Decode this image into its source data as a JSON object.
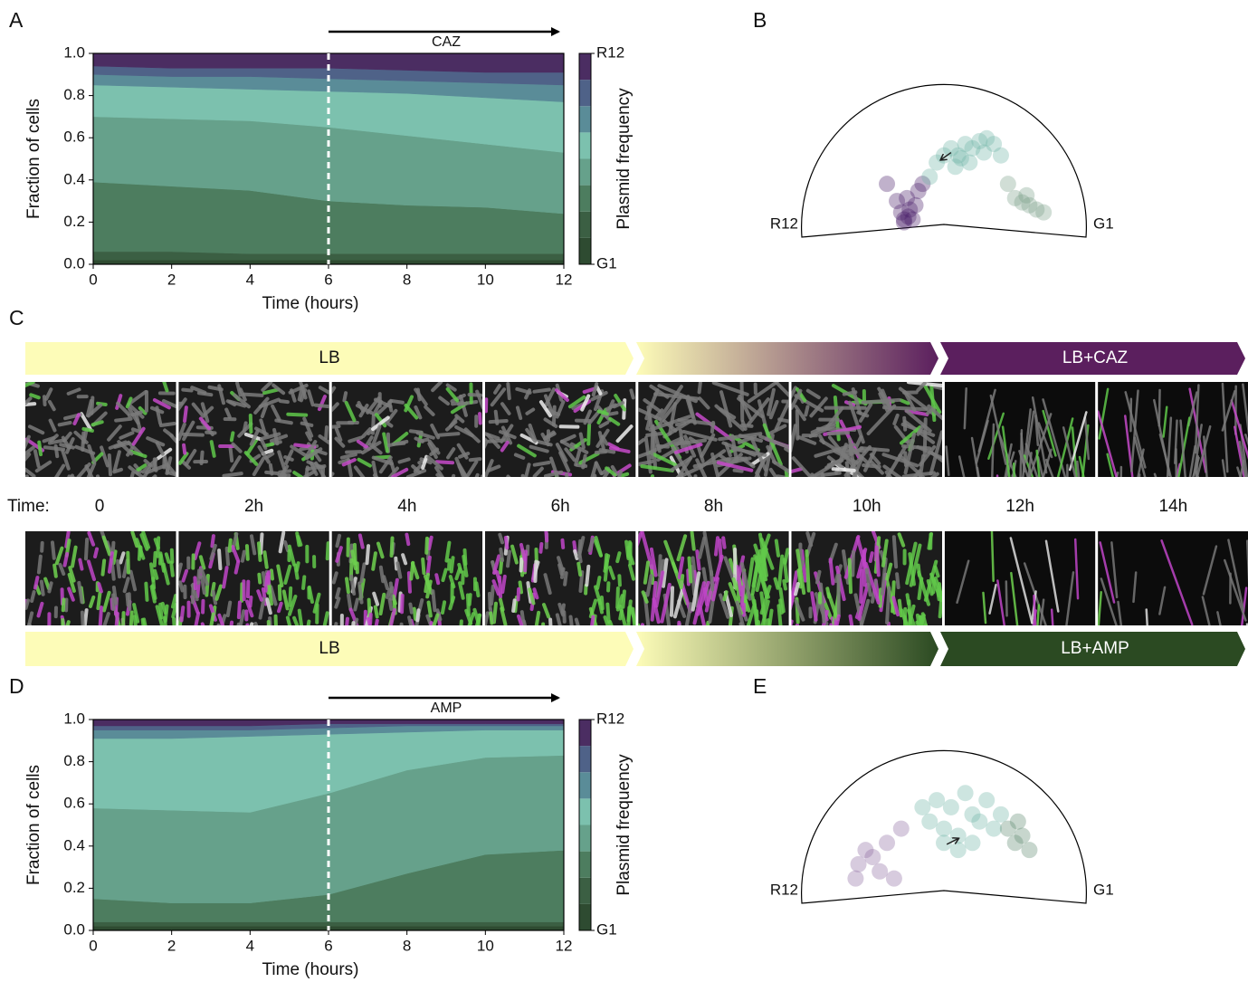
{
  "chart_data": [
    {
      "type": "area",
      "panel": "A",
      "stacked": true,
      "xlabel": "Time (hours)",
      "ylabel": "Fraction of cells",
      "x": [
        0,
        2,
        4,
        6,
        8,
        10,
        12
      ],
      "xlim": [
        0,
        12
      ],
      "xticks": [
        0,
        2,
        4,
        6,
        8,
        10,
        12
      ],
      "ylim": [
        0,
        1
      ],
      "yticks": [
        {
          "value": 0,
          "label": "0.0"
        },
        {
          "value": 0.2,
          "label": "0.2"
        },
        {
          "value": 0.4,
          "label": "0.4"
        },
        {
          "value": 0.6,
          "label": "0.6"
        },
        {
          "value": 0.8,
          "label": "0.8"
        },
        {
          "value": 1,
          "label": "1.0"
        }
      ],
      "vline": 6,
      "annotation": "CAZ",
      "colorbar": {
        "label": "Plasmid frequency",
        "top": "R12",
        "bottom": "G1"
      },
      "series": [
        {
          "color": "#2e4b31",
          "values": [
            0.02,
            0.02,
            0.02,
            0.02,
            0.02,
            0.02,
            0.02
          ]
        },
        {
          "color": "#3b5f43",
          "values": [
            0.04,
            0.04,
            0.03,
            0.03,
            0.03,
            0.03,
            0.03
          ]
        },
        {
          "color": "#4d7d5f",
          "values": [
            0.33,
            0.31,
            0.3,
            0.25,
            0.23,
            0.22,
            0.19
          ]
        },
        {
          "color": "#66a18b",
          "values": [
            0.31,
            0.32,
            0.33,
            0.35,
            0.33,
            0.3,
            0.29
          ]
        },
        {
          "color": "#7cc1ae",
          "values": [
            0.15,
            0.15,
            0.15,
            0.17,
            0.2,
            0.22,
            0.24
          ]
        },
        {
          "color": "#5a8c98",
          "values": [
            0.05,
            0.05,
            0.06,
            0.06,
            0.06,
            0.07,
            0.08
          ]
        },
        {
          "color": "#4f6288",
          "values": [
            0.04,
            0.04,
            0.04,
            0.05,
            0.05,
            0.05,
            0.06
          ]
        },
        {
          "color": "#4b2d62",
          "values": [
            0.06,
            0.07,
            0.07,
            0.07,
            0.08,
            0.09,
            0.09
          ]
        }
      ]
    },
    {
      "type": "scatter",
      "panel": "B",
      "left_label": "R12",
      "right_label": "G1",
      "arrow": {
        "x": [
          0.05,
          -0.02
        ],
        "y": [
          0.52,
          0.47
        ]
      },
      "series": [
        {
          "color": "#4b1f6a",
          "x": [
            -0.28,
            -0.25,
            -0.22,
            -0.3,
            -0.2,
            -0.26,
            -0.33,
            -0.18,
            -0.24,
            -0.4,
            -0.15,
            -0.28
          ],
          "y": [
            0.05,
            0.07,
            0.05,
            0.1,
            0.15,
            0.2,
            0.18,
            0.25,
            0.12,
            0.3,
            0.3,
            0.03
          ]
        },
        {
          "color": "#6fb5a5",
          "x": [
            -0.05,
            0.0,
            0.05,
            0.1,
            0.15,
            0.2,
            0.25,
            0.3,
            0.35,
            0.08,
            0.12,
            -0.1,
            0.18,
            0.28,
            0.4
          ],
          "y": [
            0.45,
            0.5,
            0.55,
            0.5,
            0.58,
            0.55,
            0.6,
            0.62,
            0.58,
            0.42,
            0.48,
            0.35,
            0.45,
            0.52,
            0.5
          ]
        },
        {
          "color": "#7aa08a",
          "x": [
            0.5,
            0.55,
            0.6,
            0.65,
            0.7,
            0.58,
            0.45
          ],
          "y": [
            0.2,
            0.17,
            0.15,
            0.12,
            0.1,
            0.22,
            0.3
          ]
        }
      ]
    },
    {
      "type": "area",
      "panel": "D",
      "stacked": true,
      "xlabel": "Time (hours)",
      "ylabel": "Fraction of cells",
      "x": [
        0,
        2,
        4,
        6,
        8,
        10,
        12
      ],
      "xlim": [
        0,
        12
      ],
      "xticks": [
        0,
        2,
        4,
        6,
        8,
        10,
        12
      ],
      "ylim": [
        0,
        1
      ],
      "yticks": [
        {
          "value": 0,
          "label": "0.0"
        },
        {
          "value": 0.2,
          "label": "0.2"
        },
        {
          "value": 0.4,
          "label": "0.4"
        },
        {
          "value": 0.6,
          "label": "0.6"
        },
        {
          "value": 0.8,
          "label": "0.8"
        },
        {
          "value": 1,
          "label": "1.0"
        }
      ],
      "vline": 6,
      "annotation": "AMP",
      "colorbar": {
        "label": "Plasmid frequency",
        "top": "R12",
        "bottom": "G1"
      },
      "series": [
        {
          "color": "#2e4b31",
          "values": [
            0.02,
            0.02,
            0.02,
            0.02,
            0.02,
            0.02,
            0.02
          ]
        },
        {
          "color": "#3b5f43",
          "values": [
            0.02,
            0.02,
            0.02,
            0.02,
            0.02,
            0.02,
            0.02
          ]
        },
        {
          "color": "#4d7d5f",
          "values": [
            0.11,
            0.09,
            0.09,
            0.13,
            0.23,
            0.32,
            0.34
          ]
        },
        {
          "color": "#66a18b",
          "values": [
            0.43,
            0.44,
            0.43,
            0.48,
            0.49,
            0.46,
            0.45
          ]
        },
        {
          "color": "#7cc1ae",
          "values": [
            0.33,
            0.34,
            0.36,
            0.28,
            0.18,
            0.13,
            0.12
          ]
        },
        {
          "color": "#5a8c98",
          "values": [
            0.04,
            0.04,
            0.03,
            0.03,
            0.03,
            0.02,
            0.02
          ]
        },
        {
          "color": "#4f6288",
          "values": [
            0.02,
            0.02,
            0.02,
            0.02,
            0.01,
            0.01,
            0.01
          ]
        },
        {
          "color": "#4b2d62",
          "values": [
            0.03,
            0.03,
            0.03,
            0.02,
            0.02,
            0.02,
            0.02
          ]
        }
      ]
    },
    {
      "type": "scatter",
      "panel": "E",
      "left_label": "R12",
      "right_label": "G1",
      "arrow": {
        "x": [
          0.02,
          0.1
        ],
        "y": [
          0.34,
          0.38
        ]
      },
      "series": [
        {
          "color": "#6fb5a5",
          "x": [
            -0.1,
            -0.05,
            0,
            0.05,
            0.1,
            0.15,
            0.2,
            0.25,
            0.3,
            0.1,
            0,
            0.2,
            0.35,
            0.4,
            -0.15
          ],
          "y": [
            0.5,
            0.65,
            0.45,
            0.6,
            0.4,
            0.7,
            0.55,
            0.5,
            0.65,
            0.3,
            0.35,
            0.35,
            0.45,
            0.55,
            0.6
          ]
        },
        {
          "color": "#8c6aa0",
          "x": [
            -0.6,
            -0.55,
            -0.5,
            -0.45,
            -0.4,
            -0.35,
            -0.62,
            -0.3
          ],
          "y": [
            0.2,
            0.3,
            0.25,
            0.15,
            0.35,
            0.1,
            0.1,
            0.45
          ]
        },
        {
          "color": "#5f8a70",
          "x": [
            0.5,
            0.55,
            0.6,
            0.45,
            0.52
          ],
          "y": [
            0.35,
            0.4,
            0.3,
            0.45,
            0.5
          ]
        }
      ]
    }
  ],
  "panel_c": {
    "letter": "C",
    "time_label": "Time:",
    "times": [
      "0",
      "2h",
      "4h",
      "6h",
      "8h",
      "10h",
      "12h",
      "14h"
    ],
    "start_color": "#fdfcb8",
    "top_banner": {
      "start": "LB",
      "end": "LB+CAZ",
      "color": "#5b1f5e"
    },
    "bottom_banner": {
      "start": "LB",
      "end": "LB+AMP",
      "color": "#2b4a22"
    }
  }
}
